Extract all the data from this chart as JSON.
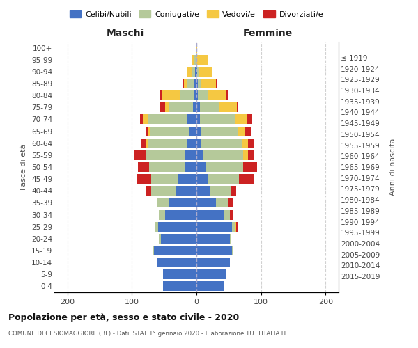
{
  "age_groups": [
    "0-4",
    "5-9",
    "10-14",
    "15-19",
    "20-24",
    "25-29",
    "30-34",
    "35-39",
    "40-44",
    "45-49",
    "50-54",
    "55-59",
    "60-64",
    "65-69",
    "70-74",
    "75-79",
    "80-84",
    "85-89",
    "90-94",
    "95-99",
    "100+"
  ],
  "birth_years": [
    "2015-2019",
    "2010-2014",
    "2005-2009",
    "2000-2004",
    "1995-1999",
    "1990-1994",
    "1985-1989",
    "1980-1984",
    "1975-1979",
    "1970-1974",
    "1965-1969",
    "1960-1964",
    "1955-1959",
    "1950-1954",
    "1945-1949",
    "1940-1944",
    "1935-1939",
    "1930-1934",
    "1925-1929",
    "1920-1924",
    "≤ 1919"
  ],
  "maschi": {
    "celibi": [
      52,
      52,
      60,
      66,
      55,
      59,
      48,
      42,
      32,
      28,
      18,
      17,
      14,
      12,
      14,
      5,
      4,
      4,
      2,
      1,
      0
    ],
    "coniugati": [
      0,
      0,
      0,
      2,
      3,
      5,
      10,
      18,
      38,
      42,
      55,
      62,
      62,
      60,
      61,
      38,
      22,
      10,
      5,
      2,
      0
    ],
    "vedovi": [
      0,
      0,
      0,
      0,
      0,
      0,
      0,
      0,
      0,
      0,
      0,
      0,
      2,
      2,
      8,
      5,
      28,
      5,
      8,
      5,
      0
    ],
    "divorziati": [
      0,
      0,
      0,
      0,
      0,
      0,
      0,
      2,
      8,
      22,
      18,
      18,
      8,
      5,
      4,
      8,
      2,
      2,
      0,
      0,
      0
    ]
  },
  "femmine": {
    "nubili": [
      42,
      45,
      52,
      55,
      52,
      55,
      42,
      30,
      22,
      18,
      14,
      10,
      8,
      8,
      5,
      5,
      2,
      2,
      1,
      0,
      0
    ],
    "coniugate": [
      0,
      0,
      0,
      2,
      2,
      5,
      10,
      18,
      32,
      48,
      58,
      62,
      62,
      56,
      55,
      30,
      16,
      6,
      2,
      0,
      0
    ],
    "vedove": [
      0,
      0,
      0,
      0,
      0,
      2,
      0,
      0,
      0,
      0,
      0,
      8,
      10,
      10,
      18,
      28,
      28,
      22,
      22,
      18,
      1
    ],
    "divorziate": [
      0,
      0,
      0,
      0,
      0,
      2,
      4,
      8,
      8,
      22,
      22,
      10,
      8,
      10,
      8,
      2,
      2,
      2,
      0,
      0,
      0
    ]
  },
  "colors": {
    "celibi": "#4472c4",
    "coniugati": "#b5c99a",
    "vedovi": "#f5c842",
    "divorziati": "#cc2222"
  },
  "xlim": 220,
  "title": "Popolazione per età, sesso e stato civile - 2020",
  "subtitle": "COMUNE DI CESIOMAGGIORE (BL) - Dati ISTAT 1° gennaio 2020 - Elaborazione TUTTITALIA.IT",
  "ylabel_left": "Fasce di età",
  "ylabel_right": "Anni di nascita",
  "xlabel_left": "Maschi",
  "xlabel_right": "Femmine",
  "bg_color": "#ffffff",
  "grid_color": "#cccccc"
}
